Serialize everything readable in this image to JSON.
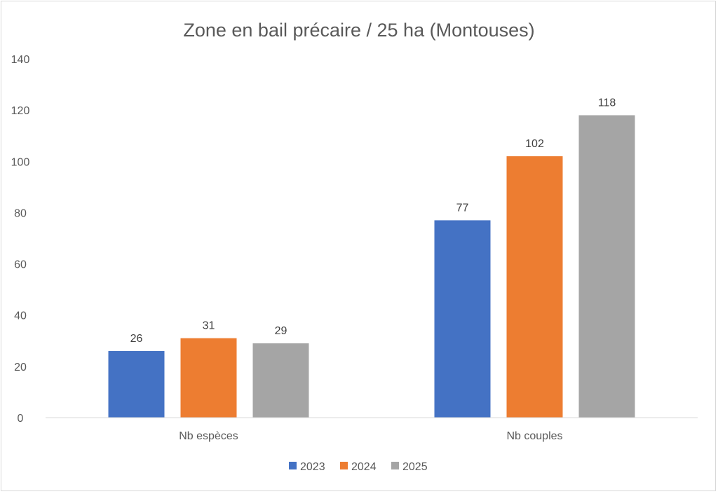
{
  "chart_data": {
    "type": "bar",
    "title": "Zone en bail précaire  / 25 ha (Montouses)",
    "xlabel": "",
    "ylabel": "",
    "categories": [
      "Nb espèces",
      "Nb couples"
    ],
    "series": [
      {
        "name": "2023",
        "color": "#4472C4",
        "values": [
          26,
          77
        ]
      },
      {
        "name": "2024",
        "color": "#ED7D31",
        "values": [
          31,
          102
        ]
      },
      {
        "name": "2025",
        "color": "#A5A5A5",
        "values": [
          29,
          118
        ]
      }
    ],
    "ylim": [
      0,
      140
    ],
    "yticks": [
      0,
      20,
      40,
      60,
      80,
      100,
      120,
      140
    ],
    "grid": false,
    "legend": "bottom",
    "data_labels": true
  }
}
